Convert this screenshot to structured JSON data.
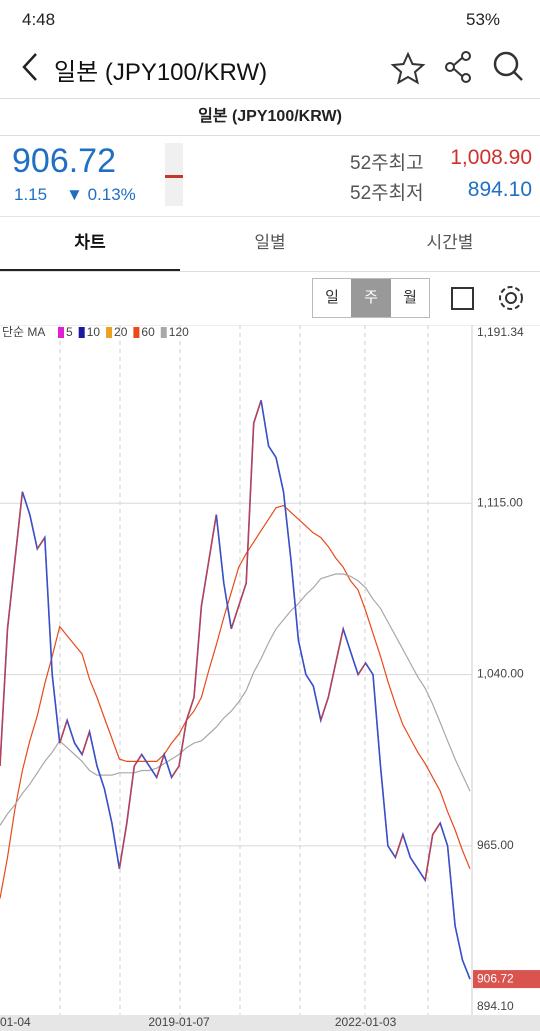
{
  "status_bar": {
    "time": "4:48",
    "battery": "53%"
  },
  "header": {
    "title": "일본 (JPY100/KRW)"
  },
  "subtitle": "일본 (JPY100/KRW)",
  "quote": {
    "price": "906.72",
    "change": "1.15",
    "change_percent": "0.13%",
    "high_52w_label": "52주최고",
    "high_52w": "1,008.90",
    "low_52w_label": "52주최저",
    "low_52w": "894.10"
  },
  "tabs": [
    "차트",
    "일별",
    "시간별"
  ],
  "period_buttons": [
    "일",
    "주",
    "월"
  ],
  "chart_data": {
    "type": "line",
    "legend_prefix": "단순 MA",
    "categories": [
      "01-04",
      null,
      null,
      null,
      null,
      null,
      null,
      null,
      null,
      null,
      null,
      null,
      null,
      null,
      null,
      null,
      null,
      null,
      null,
      null,
      null,
      null,
      null,
      null,
      "2019-01-07",
      null,
      null,
      null,
      null,
      null,
      null,
      null,
      null,
      null,
      null,
      null,
      null,
      null,
      null,
      null,
      null,
      null,
      null,
      null,
      null,
      null,
      null,
      null,
      null,
      "2022-01-03",
      null,
      null,
      null,
      null,
      null,
      null,
      null,
      null,
      null,
      null,
      null,
      null,
      null,
      null
    ],
    "price": {
      "color": "#3a4fc8",
      "values": [
        1000,
        1060,
        1090,
        1120,
        1110,
        1095,
        1100,
        1040,
        1010,
        1020,
        1010,
        1005,
        1015,
        1000,
        990,
        975,
        955,
        975,
        1000,
        1005,
        1000,
        995,
        1005,
        995,
        1000,
        1020,
        1030,
        1070,
        1090,
        1110,
        1080,
        1060,
        1070,
        1080,
        1150,
        1160,
        1140,
        1135,
        1120,
        1090,
        1055,
        1040,
        1035,
        1020,
        1030,
        1045,
        1060,
        1050,
        1040,
        1045,
        1040,
        1000,
        965,
        960,
        970,
        960,
        955,
        950,
        970,
        975,
        965,
        930,
        915,
        906.72
      ]
    },
    "series": [
      {
        "name": "5",
        "color": "#e020d0"
      },
      {
        "name": "10",
        "color": "#1a1aa0"
      },
      {
        "name": "20",
        "color": "#f0a020"
      },
      {
        "name": "60",
        "color": "#e84a1a",
        "values": [
          942,
          960,
          981,
          998,
          1011,
          1022,
          1036,
          1048,
          1061,
          1057,
          1053,
          1049,
          1038,
          1030,
          1021,
          1012,
          1003,
          1002,
          1002,
          1002,
          1002,
          1002,
          1005,
          1010,
          1014,
          1020,
          1024,
          1030,
          1042,
          1053,
          1065,
          1076,
          1087,
          1093,
          1098,
          1103,
          1108,
          1113,
          1114,
          1111,
          1108,
          1105,
          1102,
          1100,
          1096,
          1091,
          1087,
          1081,
          1077,
          1068,
          1058,
          1048,
          1037,
          1027,
          1018,
          1012,
          1006,
          1001,
          995,
          989,
          980,
          972,
          963,
          955
        ]
      },
      {
        "name": "120",
        "color": "#a8a8a8",
        "values": [
          974,
          979,
          983,
          988,
          992,
          997,
          1002,
          1006,
          1011,
          1008,
          1005,
          1002,
          998,
          996,
          996,
          996,
          997,
          997,
          997,
          998,
          998,
          999,
          1001,
          1003,
          1005,
          1008,
          1010,
          1011,
          1014,
          1017,
          1021,
          1024,
          1028,
          1033,
          1041,
          1047,
          1054,
          1060,
          1064,
          1068,
          1071,
          1075,
          1078,
          1082,
          1083,
          1084,
          1084,
          1083,
          1081,
          1078,
          1073,
          1069,
          1063,
          1057,
          1051,
          1045,
          1039,
          1034,
          1027,
          1019,
          1011,
          1003,
          996,
          989
        ]
      }
    ],
    "ylim": [
      891,
      1193
    ],
    "yticks": [
      {
        "value": 1191.34,
        "label": "1,191.34"
      },
      {
        "value": 1115,
        "label": "1,115.00"
      },
      {
        "value": 1040,
        "label": "1,040.00"
      },
      {
        "value": 965,
        "label": "965.00"
      },
      {
        "value": 894.1,
        "label": "894.10"
      }
    ],
    "grid": true
  }
}
